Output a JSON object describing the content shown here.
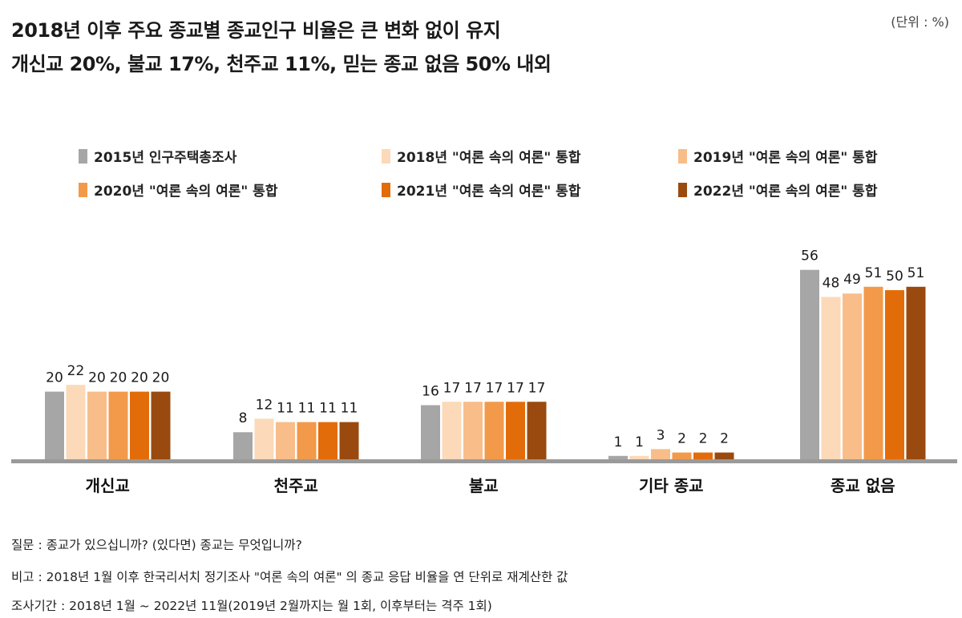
{
  "title_line1": "2018년 이후 주요 종교별 종교인구 비율은 큰 변화 없이 유지",
  "title_line2": "개신교 20%, 불교 17%, 천주교 11%, 믿는 종교 없음 50% 내외",
  "unit": "(단위 : %)",
  "notes": {
    "question": "질문 : 종교가 있으십니까? (있다면) 종교는 무엇입니까?",
    "remark": "비고 : 2018년 1월 이후 한국리서치 정기조사 \"여론 속의 여론\" 의 종교 응답 비율을 연 단위로 재계산한 값",
    "period": "조사기간 : 2018년 1월 ~ 2022년 11월(2019년 2월까지는 월 1회, 이후부터는 격주 1회)"
  },
  "chart_data": {
    "type": "bar",
    "categories": [
      "개신교",
      "천주교",
      "불교",
      "기타 종교",
      "종교 없음"
    ],
    "ylim": [
      0,
      60
    ],
    "grid": false,
    "legend_position": "top",
    "series": [
      {
        "name": "2015년 인구주택총조사",
        "color": "#a6a6a6",
        "values": [
          20,
          8,
          16,
          1,
          56
        ]
      },
      {
        "name": "2018년 \"여론 속의 여론\" 통합",
        "color": "#fcd9b8",
        "values": [
          22,
          12,
          17,
          1,
          48
        ]
      },
      {
        "name": "2019년 \"여론 속의 여론\" 통합",
        "color": "#f8bd89",
        "values": [
          20,
          11,
          17,
          3,
          49
        ]
      },
      {
        "name": "2020년 \"여론 속의 여론\" 통합",
        "color": "#f29a4a",
        "values": [
          20,
          11,
          17,
          2,
          51
        ]
      },
      {
        "name": "2021년 \"여론 속의 여론\" 통합",
        "color": "#e36c0a",
        "values": [
          20,
          11,
          17,
          2,
          50
        ]
      },
      {
        "name": "2022년 \"여론 속의 여론\" 통합",
        "color": "#9a4a0f",
        "values": [
          20,
          11,
          17,
          2,
          51
        ]
      }
    ]
  }
}
